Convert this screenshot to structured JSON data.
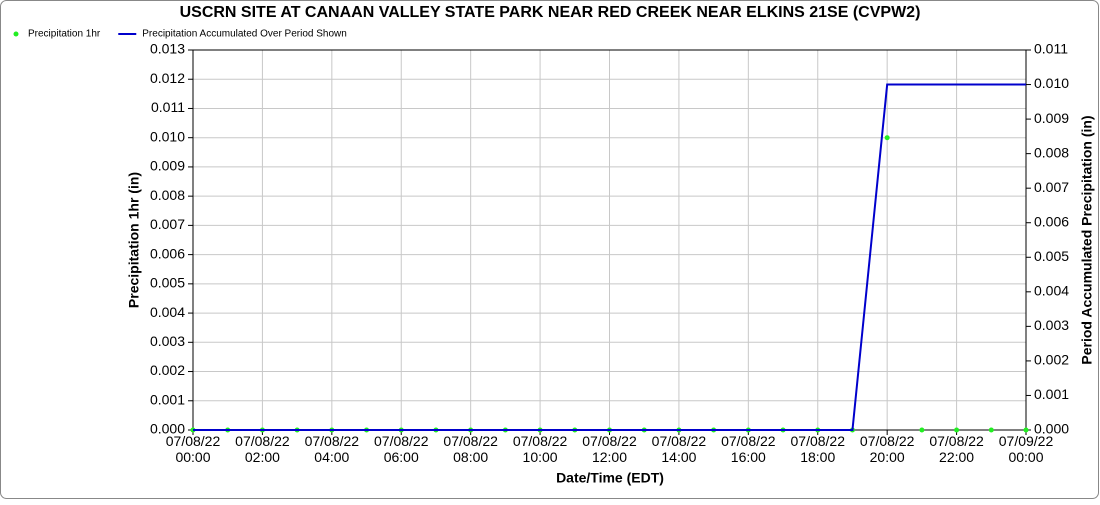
{
  "chart_data": {
    "type": "line",
    "title": "USCRN SITE AT CANAAN VALLEY STATE PARK NEAR RED CREEK NEAR ELKINS 21SE (CVPW2)",
    "x_label": "Date/Time (EDT)",
    "y_label": "Precipitation 1hr (in)",
    "y2_label": "Period Accumulated Precipitation (in)",
    "x": [
      "07/08/22 00:00",
      "07/08/22 01:00",
      "07/08/22 02:00",
      "07/08/22 03:00",
      "07/08/22 04:00",
      "07/08/22 05:00",
      "07/08/22 06:00",
      "07/08/22 07:00",
      "07/08/22 08:00",
      "07/08/22 09:00",
      "07/08/22 10:00",
      "07/08/22 11:00",
      "07/08/22 12:00",
      "07/08/22 13:00",
      "07/08/22 14:00",
      "07/08/22 15:00",
      "07/08/22 16:00",
      "07/08/22 17:00",
      "07/08/22 18:00",
      "07/08/22 19:00",
      "07/08/22 20:00",
      "07/08/22 21:00",
      "07/08/22 22:00",
      "07/08/22 23:00",
      "07/09/22 00:00"
    ],
    "series": [
      {
        "name": "Precipitation 1hr",
        "color": "#22ee22",
        "style": "points",
        "values": [
          0,
          0,
          0,
          0,
          0,
          0,
          0,
          0,
          0,
          0,
          0,
          0,
          0,
          0,
          0,
          0,
          0,
          0,
          0,
          0,
          0.01,
          0,
          0,
          0,
          0
        ]
      },
      {
        "name": "Precipitation Accumulated Over Period Shown",
        "color": "#0000cc",
        "style": "line",
        "axis": "y2",
        "values": [
          0,
          0,
          0,
          0,
          0,
          0,
          0,
          0,
          0,
          0,
          0,
          0,
          0,
          0,
          0,
          0,
          0,
          0,
          0,
          0,
          0.01,
          0.01,
          0.01,
          0.01,
          0.01
        ]
      }
    ],
    "xlim": [
      "07/08/22 00:00",
      "07/09/22 00:00"
    ],
    "xticks": [
      "07/08/22 00:00",
      "07/08/22 02:00",
      "07/08/22 04:00",
      "07/08/22 06:00",
      "07/08/22 08:00",
      "07/08/22 10:00",
      "07/08/22 12:00",
      "07/08/22 14:00",
      "07/08/22 16:00",
      "07/08/22 18:00",
      "07/08/22 20:00",
      "07/08/22 22:00",
      "07/09/22 00:00"
    ],
    "ylim": [
      0,
      0.013
    ],
    "yticks": [
      {
        "value": 0,
        "label": "0.000"
      },
      {
        "value": 0.001,
        "label": "0.001"
      },
      {
        "value": 0.002,
        "label": "0.002"
      },
      {
        "value": 0.003,
        "label": "0.003"
      },
      {
        "value": 0.004,
        "label": "0.004"
      },
      {
        "value": 0.005,
        "label": "0.005"
      },
      {
        "value": 0.006,
        "label": "0.006"
      },
      {
        "value": 0.007,
        "label": "0.007"
      },
      {
        "value": 0.008,
        "label": "0.008"
      },
      {
        "value": 0.009,
        "label": "0.009"
      },
      {
        "value": 0.01,
        "label": "0.010"
      },
      {
        "value": 0.011,
        "label": "0.011"
      },
      {
        "value": 0.012,
        "label": "0.012"
      },
      {
        "value": 0.013,
        "label": "0.013"
      }
    ],
    "y2lim": [
      0,
      0.011
    ],
    "y2ticks": [
      {
        "value": 0,
        "label": "0.000"
      },
      {
        "value": 0.001,
        "label": "0.001"
      },
      {
        "value": 0.002,
        "label": "0.002"
      },
      {
        "value": 0.003,
        "label": "0.003"
      },
      {
        "value": 0.004,
        "label": "0.004"
      },
      {
        "value": 0.005,
        "label": "0.005"
      },
      {
        "value": 0.006,
        "label": "0.006"
      },
      {
        "value": 0.007,
        "label": "0.007"
      },
      {
        "value": 0.008,
        "label": "0.008"
      },
      {
        "value": 0.009,
        "label": "0.009"
      },
      {
        "value": 0.01,
        "label": "0.010"
      },
      {
        "value": 0.011,
        "label": "0.011"
      }
    ],
    "grid": true
  }
}
